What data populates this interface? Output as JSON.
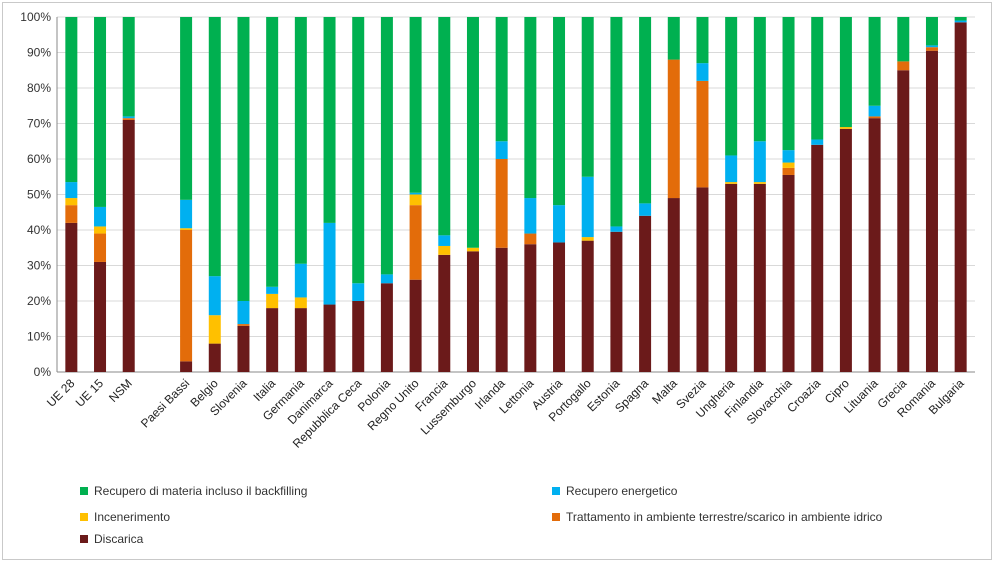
{
  "chart_data": {
    "type": "bar",
    "stacked": true,
    "ylim": [
      0,
      100
    ],
    "y_ticks": [
      "0%",
      "10%",
      "20%",
      "30%",
      "40%",
      "50%",
      "60%",
      "70%",
      "80%",
      "90%",
      "100%"
    ],
    "grid": true,
    "legend_position": "bottom",
    "categories": [
      "UE 28",
      "UE 15",
      "NSM",
      "",
      "Paesi Bassi",
      "Belgio",
      "Slovenia",
      "Italia",
      "Germania",
      "Danimarca",
      "Repubblica Ceca",
      "Polonia",
      "Regno Unito",
      "Francia",
      "Lussemburgo",
      "Irlanda",
      "Lettonia",
      "Austria",
      "Portogallo",
      "Estonia",
      "Spagna",
      "Malta",
      "Svezia",
      "Ungheria",
      "Finlandia",
      "Slovacchia",
      "Croazia",
      "Cipro",
      "Lituania",
      "Grecia",
      "Romania",
      "Bulgaria"
    ],
    "series": [
      {
        "name": "Discarica",
        "color": "#6b1a1a",
        "values": [
          42,
          31,
          71,
          0,
          3,
          8,
          13,
          18,
          18,
          19,
          20,
          25,
          26,
          33,
          34,
          35,
          36,
          36.5,
          37,
          39.5,
          44,
          49,
          52,
          53,
          53,
          55.5,
          64,
          68.5,
          71.5,
          85,
          90.5,
          98.5
        ]
      },
      {
        "name": "Trattamento in ambiente terrestre/scarico in ambiente idrico",
        "color": "#e36c0a",
        "values": [
          5,
          8,
          0.5,
          0,
          37,
          0,
          0.5,
          0,
          0,
          0,
          0,
          0,
          21,
          0,
          0,
          25,
          3,
          0,
          0,
          0,
          0,
          39,
          30,
          0,
          0,
          2,
          0,
          0,
          0.5,
          2.5,
          1,
          0
        ]
      },
      {
        "name": "Incenerimento",
        "color": "#ffc000",
        "values": [
          2,
          2,
          0,
          0,
          0.5,
          8,
          0,
          4,
          3,
          0,
          0,
          0,
          3,
          2.5,
          1,
          0,
          0,
          0,
          1,
          0,
          0,
          0,
          0,
          0.5,
          0.5,
          1.5,
          0,
          0.5,
          0,
          0,
          0,
          0
        ]
      },
      {
        "name": "Recupero energetico",
        "color": "#00b0f0",
        "values": [
          4.5,
          5.5,
          0.5,
          0,
          8,
          11,
          6.5,
          2,
          9.5,
          23,
          5,
          2.5,
          0.5,
          3,
          0,
          5,
          10,
          10.5,
          17,
          1.5,
          3.5,
          0,
          5,
          7.5,
          11.5,
          3.5,
          1.5,
          0,
          3,
          0,
          0.5,
          0.5
        ]
      },
      {
        "name": "Recupero di materia incluso il backfilling",
        "color": "#00b050",
        "values": [
          46.5,
          53.5,
          28,
          0,
          51.5,
          73,
          80,
          76,
          69.5,
          58,
          75,
          72.5,
          49.5,
          61.5,
          65,
          35,
          51,
          53,
          45,
          59,
          52.5,
          12,
          13,
          39,
          35,
          37.5,
          34.5,
          31,
          25,
          12.5,
          8,
          1
        ]
      }
    ]
  },
  "legend": [
    {
      "label": "Recupero di materia incluso il backfilling",
      "color": "#00b050"
    },
    {
      "label": "Recupero energetico",
      "color": "#00b0f0"
    },
    {
      "label": "Incenerimento",
      "color": "#ffc000"
    },
    {
      "label": "Trattamento in ambiente terrestre/scarico in ambiente idrico",
      "color": "#e36c0a"
    },
    {
      "label": "Discarica",
      "color": "#6b1a1a"
    }
  ]
}
